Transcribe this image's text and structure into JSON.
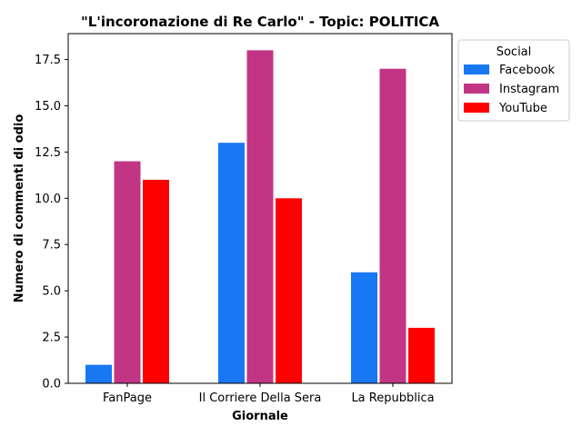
{
  "chart_data": {
    "type": "bar",
    "title": "\"L'incoronazione di Re Carlo\" - Topic: POLITICA",
    "xlabel": "Giornale",
    "ylabel": "Numero di commenti di odio",
    "categories": [
      "FanPage",
      "Il Corriere Della Sera",
      "La Repubblica"
    ],
    "series": [
      {
        "name": "Facebook",
        "values": [
          1,
          13,
          6
        ],
        "color": "#1877f2"
      },
      {
        "name": "Instagram",
        "values": [
          12,
          18,
          17
        ],
        "color": "#c13584"
      },
      {
        "name": "YouTube",
        "values": [
          11,
          10,
          3
        ],
        "color": "#ff0000"
      }
    ],
    "ylim": [
      0,
      18.9
    ],
    "yticks": [
      "0.0",
      "2.5",
      "5.0",
      "7.5",
      "10.0",
      "12.5",
      "15.0",
      "17.5"
    ],
    "legend": {
      "title": "Social",
      "placement": "outside-top-right"
    },
    "grid": false
  }
}
